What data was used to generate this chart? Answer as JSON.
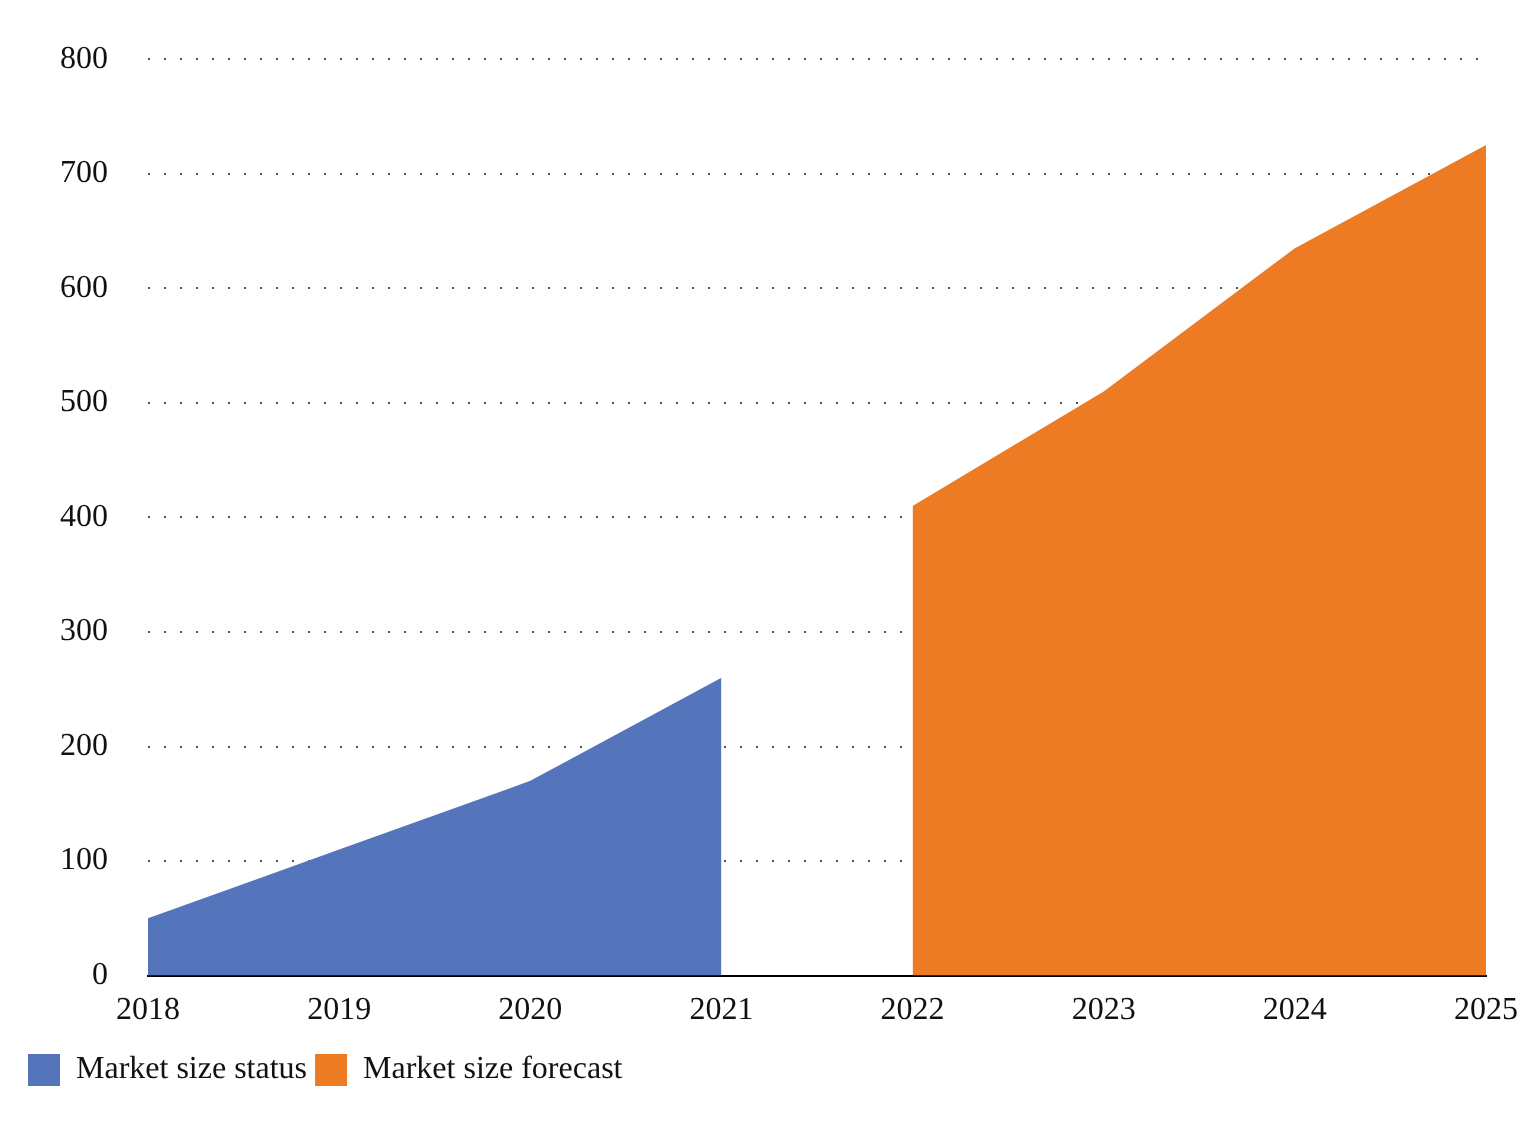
{
  "chart_data": {
    "type": "area",
    "categories": [
      "2018",
      "2019",
      "2020",
      "2021",
      "2022",
      "2023",
      "2024",
      "2025"
    ],
    "series": [
      {
        "name": "Market size status",
        "color": "#5475bb",
        "values": [
          50,
          110,
          170,
          260,
          null,
          null,
          null,
          null
        ]
      },
      {
        "name": "Market size forecast",
        "color": "#ed7b24",
        "values": [
          null,
          null,
          null,
          null,
          410,
          510,
          635,
          725
        ]
      }
    ],
    "ylim": [
      0,
      800
    ],
    "yticks": [
      0,
      100,
      200,
      300,
      400,
      500,
      600,
      700,
      800
    ],
    "grid": "y",
    "legend": "bottom left"
  }
}
